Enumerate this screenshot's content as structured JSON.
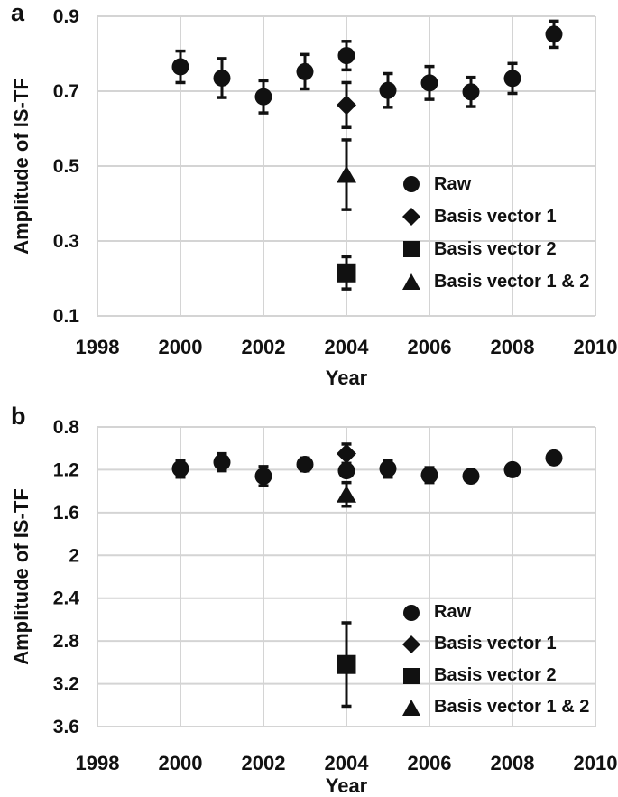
{
  "chart_data": [
    {
      "type": "scatter",
      "panel_label": "a",
      "xlabel": "Year",
      "ylabel": "Amplitude of IS-TF",
      "xlim": [
        1998,
        2010
      ],
      "xticks": [
        1998,
        2000,
        2002,
        2004,
        2006,
        2008,
        2010
      ],
      "ylim": [
        0.1,
        0.9
      ],
      "yticks": [
        0.9,
        0.7,
        0.5,
        0.3,
        0.1
      ],
      "y_inverted": false,
      "grid": true,
      "legend_position": "inside lower right",
      "series": [
        {
          "name": "Raw",
          "marker": "circle",
          "x": [
            2000,
            2001,
            2002,
            2003,
            2004,
            2005,
            2006,
            2007,
            2008,
            2009
          ],
          "y": [
            0.765,
            0.735,
            0.685,
            0.752,
            0.795,
            0.702,
            0.722,
            0.698,
            0.734,
            0.852
          ],
          "yerr": [
            0.042,
            0.052,
            0.043,
            0.046,
            0.038,
            0.045,
            0.044,
            0.039,
            0.04,
            0.035
          ]
        },
        {
          "name": "Basis vector 1",
          "marker": "diamond",
          "x": [
            2004
          ],
          "y": [
            0.663
          ],
          "yerr": [
            0.06
          ]
        },
        {
          "name": "Basis vector 2",
          "marker": "square",
          "x": [
            2004
          ],
          "y": [
            0.215
          ],
          "yerr": [
            0.043
          ]
        },
        {
          "name": "Basis vector 1 & 2",
          "marker": "triangle",
          "x": [
            2004
          ],
          "y": [
            0.477
          ],
          "yerr": [
            0.093
          ]
        }
      ]
    },
    {
      "type": "scatter",
      "panel_label": "b",
      "xlabel": "Year",
      "ylabel": "Amplitude of IS-TF",
      "xlim": [
        1998,
        2010
      ],
      "xticks": [
        1998,
        2000,
        2002,
        2004,
        2006,
        2008,
        2010
      ],
      "ylim": [
        0.8,
        3.6
      ],
      "yticks": [
        0.8,
        1.2,
        1.6,
        2,
        2.4,
        2.8,
        3.2,
        3.6
      ],
      "y_inverted": true,
      "grid": true,
      "legend_position": "inside lower right",
      "series": [
        {
          "name": "Raw",
          "marker": "circle",
          "x": [
            2000,
            2001,
            2002,
            2003,
            2004,
            2005,
            2006,
            2007,
            2008,
            2009
          ],
          "y": [
            1.19,
            1.13,
            1.26,
            1.15,
            1.21,
            1.19,
            1.25,
            1.26,
            1.2,
            1.09
          ],
          "yerr": [
            0.08,
            0.08,
            0.09,
            0.06,
            0.05,
            0.08,
            0.07,
            0.05,
            0.05,
            0.04
          ]
        },
        {
          "name": "Basis vector 1",
          "marker": "diamond",
          "x": [
            2004
          ],
          "y": [
            1.05
          ],
          "yerr": [
            0.09
          ]
        },
        {
          "name": "Basis vector 2",
          "marker": "square",
          "x": [
            2004
          ],
          "y": [
            3.02
          ],
          "yerr": [
            0.39
          ]
        },
        {
          "name": "Basis vector 1 & 2",
          "marker": "triangle",
          "x": [
            2004
          ],
          "y": [
            1.43
          ],
          "yerr": [
            0.11
          ]
        }
      ]
    }
  ],
  "colors": {
    "marker": "#111111",
    "gridline": "#d4d4d4",
    "text": "#111111"
  }
}
